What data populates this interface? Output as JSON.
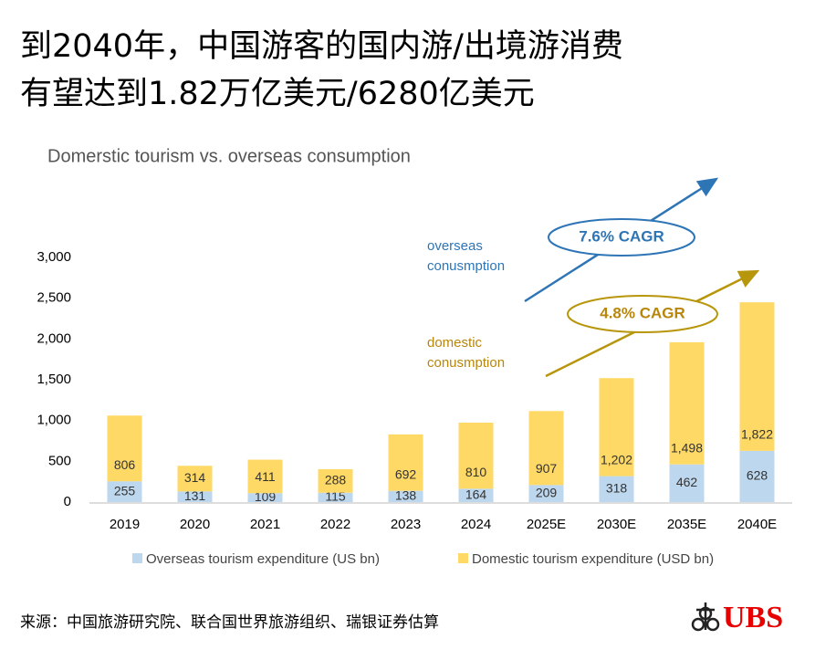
{
  "header": {
    "lines": [
      "到2040年，中国游客的国内游/出境游消费",
      "有望达到1.82万亿美元/6280亿美元"
    ]
  },
  "chart_data": {
    "type": "stacked-bar",
    "title": "Domerstic tourism vs. overseas consumption",
    "categories": [
      "2019",
      "2020",
      "2021",
      "2022",
      "2023",
      "2024",
      "2025E",
      "2030E",
      "2035E",
      "2040E"
    ],
    "series": [
      {
        "name": "Overseas tourism expenditure (US bn)",
        "color": "#bdd7ee",
        "values": [
          255,
          131,
          109,
          115,
          138,
          164,
          209,
          318,
          462,
          628
        ]
      },
      {
        "name": "Domestic tourism expenditure (USD bn)",
        "color": "#ffd966",
        "values": [
          806,
          314,
          411,
          288,
          692,
          810,
          907,
          1202,
          1498,
          1822
        ],
        "value_labels": [
          "806",
          "314",
          "411",
          "288",
          "692",
          "810",
          "907",
          "1,202",
          "1,498",
          "1,822"
        ]
      }
    ],
    "ylim": [
      0,
      3000
    ],
    "yticks": [
      0,
      500,
      {
        "value": 1000,
        "label": "1,000"
      },
      {
        "value": 1500,
        "label": "1,500"
      },
      {
        "value": 2000,
        "label": "2,000"
      },
      {
        "value": 2500,
        "label": "2,500"
      },
      {
        "value": 3000,
        "label": "3,000"
      }
    ],
    "annotations": [
      "overseas",
      "conusmption",
      "7.6% CAGR",
      "domestic",
      "conusmption",
      "4.8% CAGR"
    ]
  },
  "source": "来源：中国旅游研究院、联合国世界旅游组织、瑞银证券估算",
  "logo": "UBS"
}
